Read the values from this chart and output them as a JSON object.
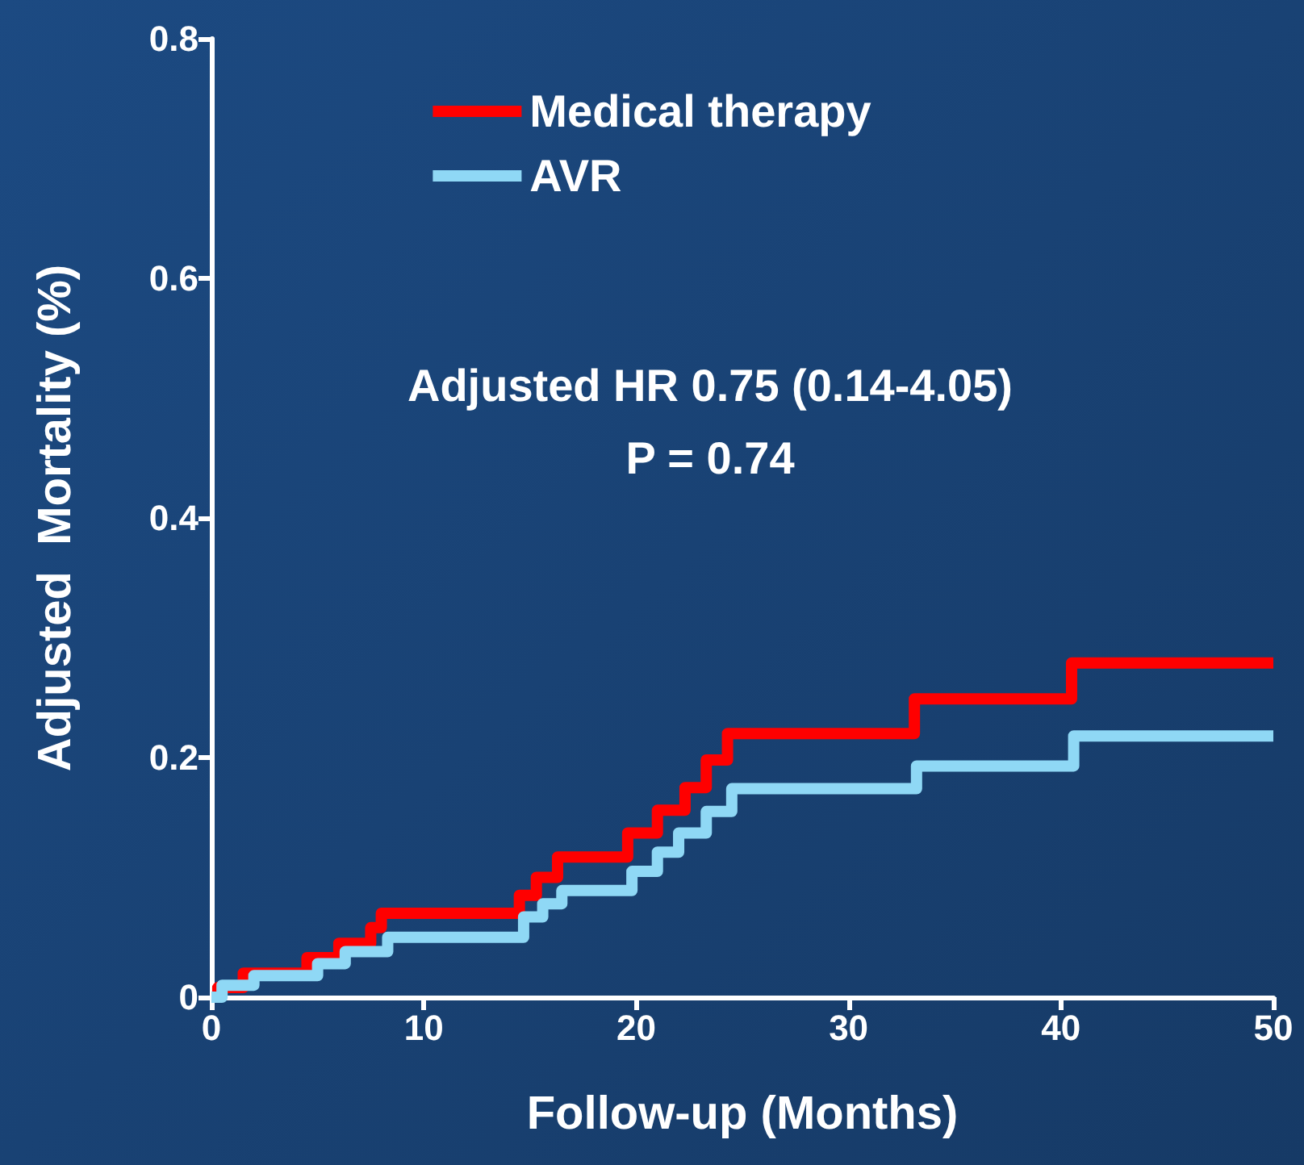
{
  "chart_data": {
    "type": "step",
    "xlabel": "Follow-up (Months)",
    "ylabel": "Adjusted  Mortality (%)",
    "xlim": [
      0,
      50
    ],
    "xticks": [
      0,
      10,
      20,
      30,
      40,
      50
    ],
    "ylim": [
      0,
      0.8
    ],
    "yticks": [
      0,
      0.2,
      0.4,
      0.6,
      0.8
    ],
    "legend": "top",
    "grid": false,
    "marker": "none",
    "line_style": "solid",
    "annotations": [
      "Adjusted HR 0.75 (0.14-4.05)",
      "P = 0.74"
    ],
    "series": [
      {
        "name": "Medical therapy",
        "color": "#ff0000",
        "x": [
          0,
          0.3,
          1.5,
          4.5,
          6,
          7.5,
          8,
          14.5,
          15.3,
          16.3,
          19.6,
          21,
          22.3,
          23.3,
          24.3,
          33.1,
          40.5,
          50
        ],
        "values": [
          0,
          0.008,
          0.02,
          0.033,
          0.045,
          0.058,
          0.07,
          0.085,
          0.1,
          0.117,
          0.137,
          0.156,
          0.175,
          0.198,
          0.22,
          0.249,
          0.279,
          0.279
        ]
      },
      {
        "name": "AVR",
        "color": "#8fd8f5",
        "x": [
          0,
          0.5,
          2,
          5,
          6.3,
          8.3,
          14.7,
          15.6,
          16.5,
          19.8,
          21,
          22,
          23.3,
          24.5,
          33.2,
          40.6,
          50
        ],
        "values": [
          0,
          0.01,
          0.018,
          0.028,
          0.038,
          0.05,
          0.067,
          0.078,
          0.089,
          0.105,
          0.121,
          0.137,
          0.155,
          0.174,
          0.193,
          0.218,
          0.218
        ]
      }
    ]
  }
}
